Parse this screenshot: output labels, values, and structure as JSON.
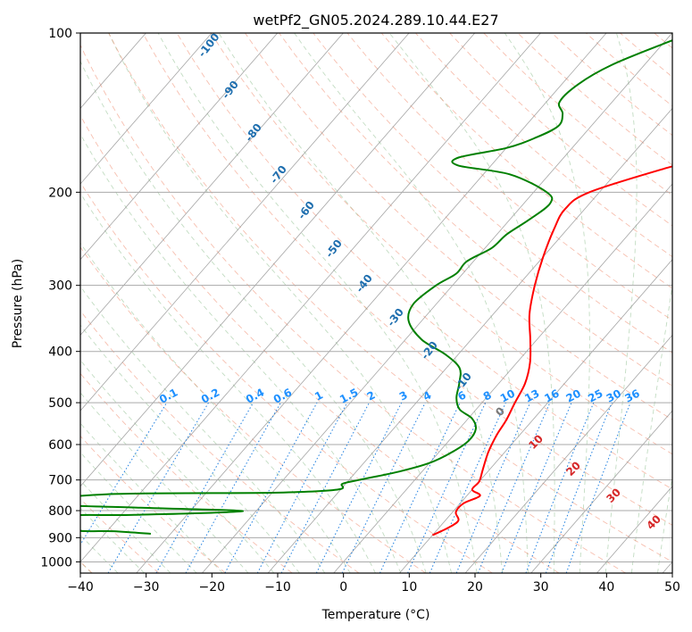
{
  "chart_data": {
    "type": "line",
    "title": "wetPf2_GN05.2024.289.10.44.E27",
    "xlabel": "Temperature (°C)",
    "ylabel": "Pressure (hPa)",
    "xlim": [
      -40,
      50
    ],
    "ylim": [
      1050,
      100
    ],
    "y_scale": "log",
    "x_ticks": [
      -40,
      -30,
      -20,
      -10,
      0,
      10,
      20,
      30,
      40,
      50
    ],
    "y_ticks": [
      100,
      200,
      300,
      400,
      500,
      600,
      700,
      800,
      900,
      1000
    ],
    "grid": true,
    "skew": "skew-T log-P",
    "series": [
      {
        "color": "#ff0000",
        "points": [
          {
            "t": 10.0,
            "p": 890
          },
          {
            "t": 11.5,
            "p": 860
          },
          {
            "t": 12.0,
            "p": 835
          },
          {
            "t": 10.5,
            "p": 805
          },
          {
            "t": 10.5,
            "p": 775
          },
          {
            "t": 12.0,
            "p": 750
          },
          {
            "t": 10.0,
            "p": 730
          },
          {
            "t": 10.0,
            "p": 705
          },
          {
            "t": 9.0,
            "p": 670
          },
          {
            "t": 7.5,
            "p": 620
          },
          {
            "t": 6.5,
            "p": 575
          },
          {
            "t": 6.0,
            "p": 540
          },
          {
            "t": 5.0,
            "p": 500
          },
          {
            "t": 4.0,
            "p": 460
          },
          {
            "t": 2.0,
            "p": 420
          },
          {
            "t": -1.0,
            "p": 380
          },
          {
            "t": -4.5,
            "p": 340
          },
          {
            "t": -7.5,
            "p": 300
          },
          {
            "t": -10.0,
            "p": 265
          },
          {
            "t": -12.0,
            "p": 235
          },
          {
            "t": -13.0,
            "p": 215
          },
          {
            "t": -11.5,
            "p": 200
          },
          {
            "t": -3.0,
            "p": 180
          },
          {
            "t": 3.0,
            "p": 170
          },
          {
            "t": 6.0,
            "p": 160
          },
          {
            "t": 7.0,
            "p": 150
          },
          {
            "t": 9.0,
            "p": 140
          },
          {
            "t": 14.0,
            "p": 130
          },
          {
            "t": 18.0,
            "p": 120
          },
          {
            "t": 21.0,
            "p": 110
          },
          {
            "t": 23.0,
            "p": 100
          }
        ]
      },
      {
        "color": "#008000",
        "points": [
          {
            "t": -33.0,
            "p": 885
          },
          {
            "t": -39.0,
            "p": 875
          },
          {
            "t": -45.0,
            "p": 870
          },
          {
            "t": -48.0,
            "p": 820
          },
          {
            "t": -38.0,
            "p": 815
          },
          {
            "t": -22.0,
            "p": 802
          },
          {
            "t": -38.0,
            "p": 790
          },
          {
            "t": -55.0,
            "p": 775
          },
          {
            "t": -45.0,
            "p": 745
          },
          {
            "t": -20.0,
            "p": 740
          },
          {
            "t": -10.5,
            "p": 730
          },
          {
            "t": -10.5,
            "p": 712
          },
          {
            "t": -8.5,
            "p": 700
          },
          {
            "t": -3.5,
            "p": 675
          },
          {
            "t": 0.0,
            "p": 650
          },
          {
            "t": 2.0,
            "p": 620
          },
          {
            "t": 3.0,
            "p": 590
          },
          {
            "t": 2.5,
            "p": 560
          },
          {
            "t": 0.5,
            "p": 535
          },
          {
            "t": -2.5,
            "p": 515
          },
          {
            "t": -4.5,
            "p": 490
          },
          {
            "t": -6.0,
            "p": 460
          },
          {
            "t": -8.0,
            "p": 430
          },
          {
            "t": -12.0,
            "p": 405
          },
          {
            "t": -17.5,
            "p": 380
          },
          {
            "t": -22.0,
            "p": 350
          },
          {
            "t": -23.5,
            "p": 325
          },
          {
            "t": -22.5,
            "p": 300
          },
          {
            "t": -21.0,
            "p": 285
          },
          {
            "t": -21.0,
            "p": 270
          },
          {
            "t": -19.0,
            "p": 255
          },
          {
            "t": -18.5,
            "p": 240
          },
          {
            "t": -17.0,
            "p": 225
          },
          {
            "t": -16.0,
            "p": 210
          },
          {
            "t": -18.0,
            "p": 200
          },
          {
            "t": -26.0,
            "p": 185
          },
          {
            "t": -35.0,
            "p": 178
          },
          {
            "t": -36.0,
            "p": 172
          },
          {
            "t": -30.0,
            "p": 165
          },
          {
            "t": -27.0,
            "p": 158
          },
          {
            "t": -25.0,
            "p": 150
          },
          {
            "t": -26.0,
            "p": 142
          },
          {
            "t": -28.0,
            "p": 135
          },
          {
            "t": -27.5,
            "p": 125
          },
          {
            "t": -25.0,
            "p": 115
          },
          {
            "t": -20.0,
            "p": 105
          },
          {
            "t": -17.0,
            "p": 100
          }
        ]
      }
    ],
    "mixing_ratio_labels": [
      "0.1",
      "0.2",
      "0.4",
      "0.6",
      "1",
      "1.5",
      "2",
      "3",
      "4",
      "6",
      "8",
      "10",
      "13",
      "16",
      "20",
      "25",
      "30",
      "36"
    ],
    "dry_adiabat_labels": [
      "-100",
      "-90",
      "-80",
      "-70",
      "-60",
      "-50",
      "-40",
      "-30",
      "-20",
      "-10"
    ],
    "moist_adiabat_labels": [
      "0",
      "10",
      "20",
      "30",
      "40"
    ]
  }
}
